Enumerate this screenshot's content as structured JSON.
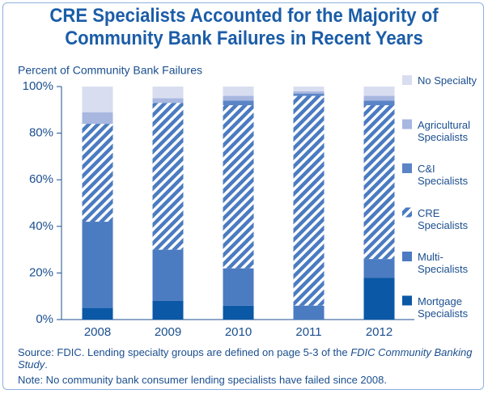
{
  "chart_data": {
    "type": "stacked_bar",
    "title": "CRE Specialists Accounted for the Majority of Community Bank Failures in Recent Years",
    "ylabel": "Percent of Community Bank Failures",
    "categories": [
      "2008",
      "2009",
      "2010",
      "2011",
      "2012"
    ],
    "series": [
      {
        "name": "Mortgage Specialists",
        "color": "#0b58a6",
        "values": [
          5,
          8,
          6,
          0,
          18
        ]
      },
      {
        "name": "Multi-Specialists",
        "color": "#4b7bc1",
        "values": [
          37,
          22,
          16,
          6,
          8
        ]
      },
      {
        "name": "CRE Specialists",
        "color": "#4b7bc1",
        "pattern": "hatch",
        "values": [
          42,
          63,
          70,
          90,
          66
        ]
      },
      {
        "name": "C&I Specialists",
        "color": "#5a84c6",
        "values": [
          0,
          0,
          2,
          1,
          2
        ]
      },
      {
        "name": "Agricultural Specialists",
        "color": "#a7b7e0",
        "values": [
          5,
          2,
          2,
          1,
          2
        ]
      },
      {
        "name": "No Specialty",
        "color": "#d9ddf0",
        "values": [
          11,
          5,
          4,
          2,
          4
        ]
      }
    ],
    "ylim": [
      0,
      100
    ],
    "yticks": [
      {
        "value": 0,
        "label": "0%"
      },
      {
        "value": 20,
        "label": "20%"
      },
      {
        "value": 40,
        "label": "40%"
      },
      {
        "value": 60,
        "label": "60%"
      },
      {
        "value": 80,
        "label": "80%"
      },
      {
        "value": 100,
        "label": "100%"
      }
    ],
    "legend": "right",
    "source": "Source: FDIC. Lending specialty groups are defined on page 5-3 of the",
    "source_italic": "FDIC Community Banking Study",
    "source_end": ".",
    "note": "Note: No community bank consumer lending specialists have failed since 2008."
  }
}
